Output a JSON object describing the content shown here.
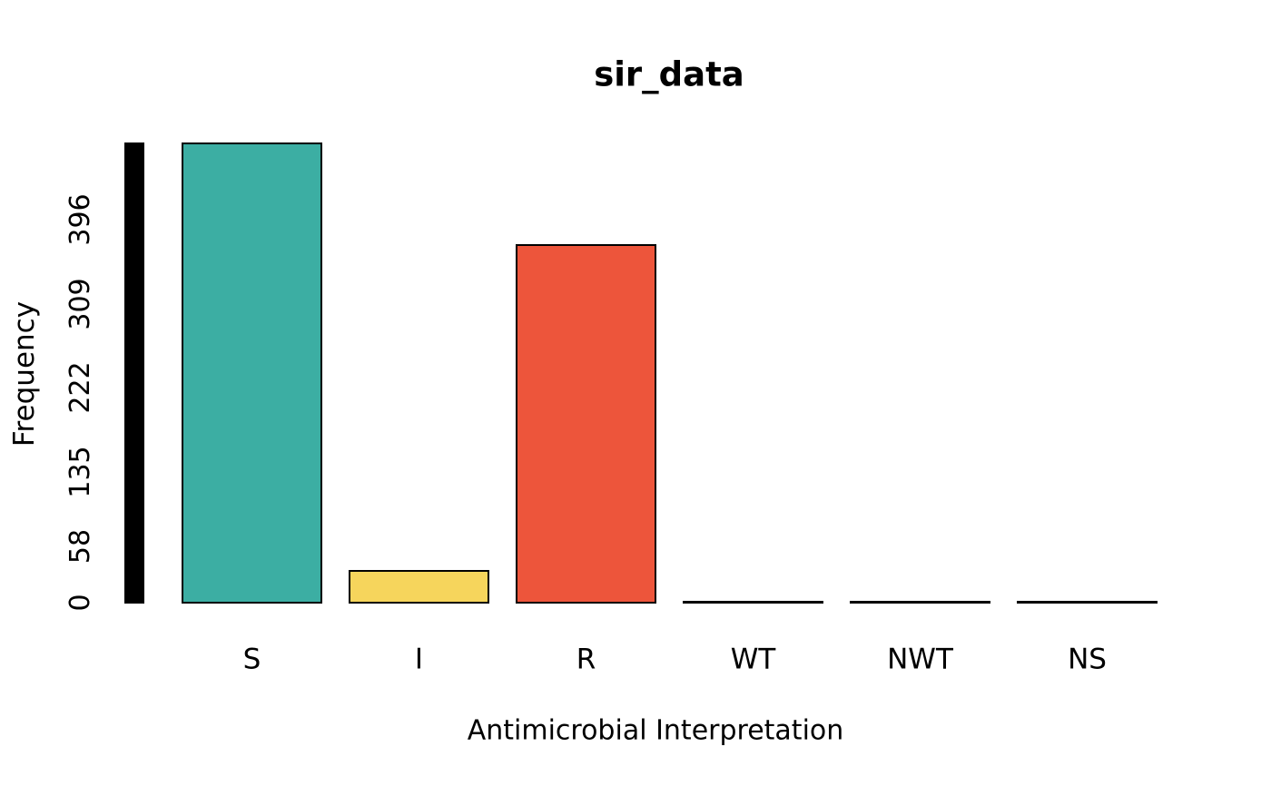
{
  "figure": {
    "background_color": "#FFFFFF",
    "text_color": "#000000"
  },
  "chart_data": {
    "type": "bar",
    "title": "sir_data",
    "xlabel": "Antimicrobial Interpretation",
    "ylabel": "Frequency",
    "categories": [
      "S",
      "I",
      "R",
      "WT",
      "NWT",
      "NS"
    ],
    "values": [
      475,
      33,
      370,
      0,
      0,
      0
    ],
    "yticks": [
      0,
      58,
      135,
      222,
      309,
      396
    ],
    "ylim": [
      0,
      480
    ],
    "grid": false,
    "legend": "none",
    "y_tick_label_rotation_deg": 90,
    "bar_colors": [
      "#3CAEA3",
      "#F6D55C",
      "#ED553B",
      "#000000",
      "#000000",
      "#000000"
    ],
    "bar_border_color": "#000000",
    "y_axis_bar_color": "#000000"
  }
}
